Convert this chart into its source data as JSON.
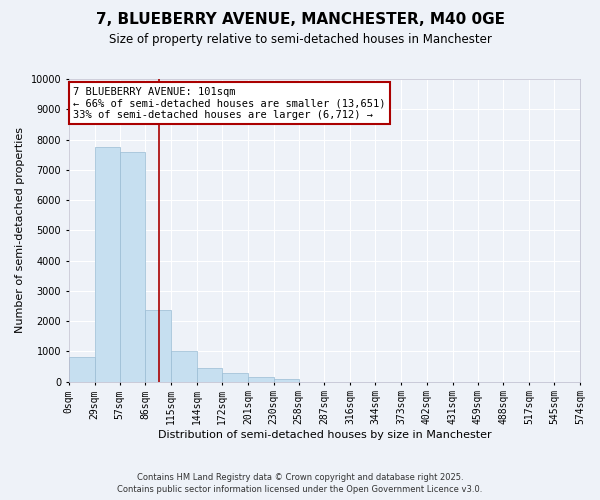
{
  "title": "7, BLUEBERRY AVENUE, MANCHESTER, M40 0GE",
  "subtitle": "Size of property relative to semi-detached houses in Manchester",
  "xlabel": "Distribution of semi-detached houses by size in Manchester",
  "ylabel": "Number of semi-detached properties",
  "bar_color": "#c6dff0",
  "bar_edge_color": "#9abcd4",
  "background_color": "#eef2f8",
  "grid_color": "white",
  "bin_edges": [
    0,
    29,
    57,
    86,
    115,
    144,
    172,
    201,
    230,
    258,
    287,
    316,
    344,
    373,
    402,
    431,
    459,
    488,
    517,
    545,
    574
  ],
  "bin_labels": [
    "0sqm",
    "29sqm",
    "57sqm",
    "86sqm",
    "115sqm",
    "144sqm",
    "172sqm",
    "201sqm",
    "230sqm",
    "258sqm",
    "287sqm",
    "316sqm",
    "344sqm",
    "373sqm",
    "402sqm",
    "431sqm",
    "459sqm",
    "488sqm",
    "517sqm",
    "545sqm",
    "574sqm"
  ],
  "counts": [
    800,
    7750,
    7600,
    2350,
    1000,
    450,
    290,
    150,
    100,
    0,
    0,
    0,
    0,
    0,
    0,
    0,
    0,
    0,
    0,
    0
  ],
  "property_size": 101,
  "property_line_color": "#aa0000",
  "ylim": [
    0,
    10000
  ],
  "yticks": [
    0,
    1000,
    2000,
    3000,
    4000,
    5000,
    6000,
    7000,
    8000,
    9000,
    10000
  ],
  "annotation_title": "7 BLUEBERRY AVENUE: 101sqm",
  "annotation_line1": "← 66% of semi-detached houses are smaller (13,651)",
  "annotation_line2": "33% of semi-detached houses are larger (6,712) →",
  "annotation_box_color": "white",
  "annotation_box_edge": "#aa0000",
  "footer_line1": "Contains HM Land Registry data © Crown copyright and database right 2025.",
  "footer_line2": "Contains public sector information licensed under the Open Government Licence v3.0.",
  "title_fontsize": 11,
  "subtitle_fontsize": 8.5,
  "axis_label_fontsize": 8,
  "tick_fontsize": 7,
  "annotation_fontsize": 7.5,
  "footer_fontsize": 6
}
